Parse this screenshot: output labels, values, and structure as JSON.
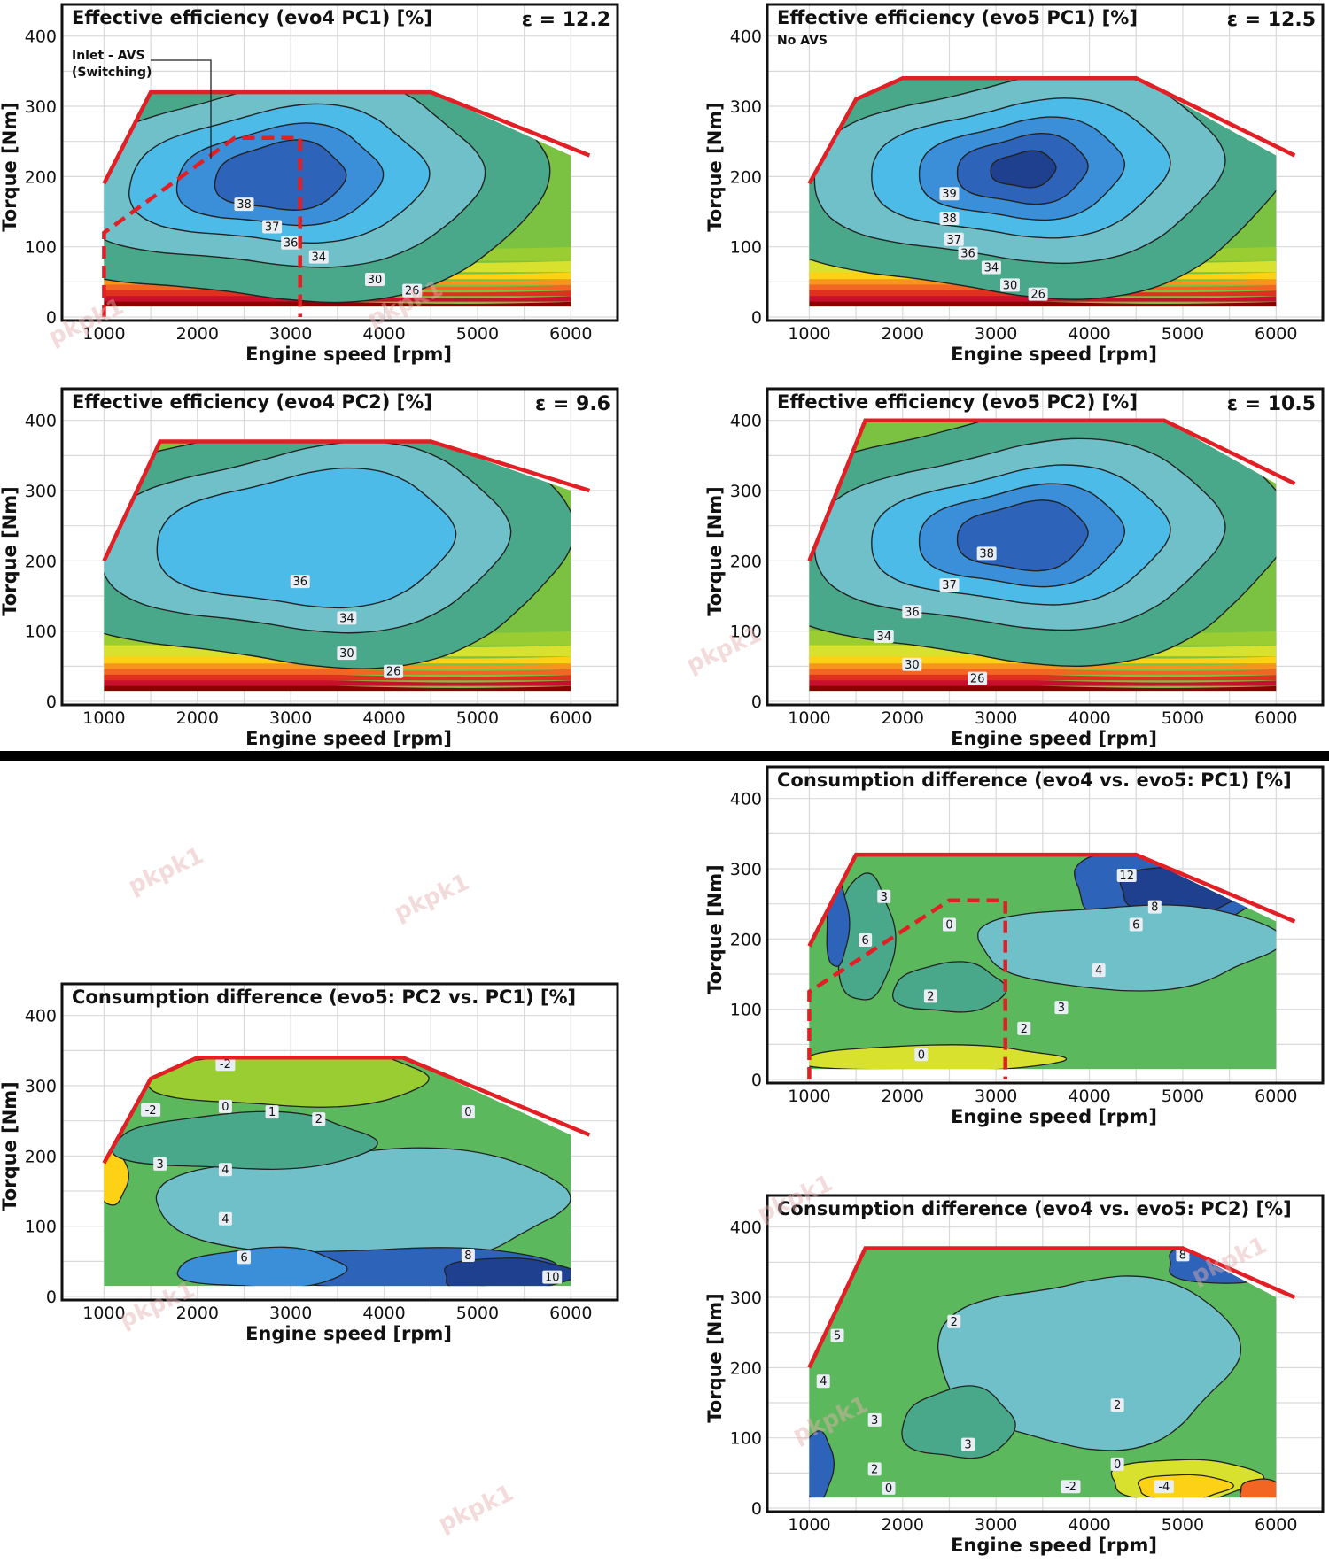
{
  "watermark": "pkpk1",
  "colors": {
    "full_load_line": "#e31e24",
    "frame": "#111111",
    "separator": "#000000",
    "efficiency_bands": [
      "#8b0000",
      "#c8102e",
      "#e0301e",
      "#f26522",
      "#f7941d",
      "#fcd116",
      "#d8e22e",
      "#9acd32",
      "#5cb85c",
      "#4aa88a",
      "#6fc0c8",
      "#4dbbe8",
      "#3a8fd8",
      "#2d63b8",
      "#1f3f8f"
    ]
  },
  "chart_data": [
    {
      "id": "evo4-pc1",
      "type": "contour",
      "title": "Effective efficiency (evo4 PC1) [%]",
      "compression_ratio": "ε = 12.2",
      "annotation": "Inlet - AVS\n(Switching)",
      "annotation_lines": [
        "Inlet - AVS",
        "(Switching)"
      ],
      "xlabel": "Engine speed [rpm]",
      "ylabel": "Torque [Nm]",
      "xlim": [
        550,
        6500
      ],
      "ylim": [
        -5,
        445
      ],
      "xticks": [
        1000,
        2000,
        3000,
        4000,
        5000,
        6000
      ],
      "yticks": [
        0,
        100,
        200,
        300,
        400
      ],
      "full_load_curve": [
        [
          1000,
          190
        ],
        [
          1500,
          320
        ],
        [
          4500,
          320
        ],
        [
          6200,
          230
        ]
      ],
      "switching_boundary": [
        [
          1000,
          0
        ],
        [
          1000,
          120
        ],
        [
          2400,
          255
        ],
        [
          3100,
          255
        ],
        [
          3100,
          0
        ]
      ],
      "contour_levels": [
        39,
        38,
        37,
        36,
        34,
        30,
        26
      ],
      "contour_labels": [
        "38",
        "37",
        "36",
        "34",
        "30",
        "26"
      ]
    },
    {
      "id": "evo5-pc1",
      "type": "contour",
      "title": "Effective efficiency (evo5 PC1) [%]",
      "compression_ratio": "ε = 12.5",
      "subtitle": "No AVS",
      "xlabel": "Engine speed [rpm]",
      "ylabel": "Torque [Nm]",
      "xlim": [
        550,
        6500
      ],
      "ylim": [
        -5,
        445
      ],
      "xticks": [
        1000,
        2000,
        3000,
        4000,
        5000,
        6000
      ],
      "yticks": [
        0,
        100,
        200,
        300,
        400
      ],
      "full_load_curve": [
        [
          1000,
          190
        ],
        [
          1500,
          310
        ],
        [
          2000,
          340
        ],
        [
          4500,
          340
        ],
        [
          6200,
          230
        ]
      ],
      "contour_levels": [
        39,
        38,
        37,
        36,
        34,
        30,
        26
      ],
      "contour_labels": [
        "39",
        "38",
        "37",
        "36",
        "34",
        "30",
        "26"
      ]
    },
    {
      "id": "evo4-pc2",
      "type": "contour",
      "title": "Effective efficiency (evo4 PC2) [%]",
      "compression_ratio": "ε = 9.6",
      "xlabel": "Engine speed [rpm]",
      "ylabel": "Torque [Nm]",
      "xlim": [
        550,
        6500
      ],
      "ylim": [
        -5,
        445
      ],
      "xticks": [
        1000,
        2000,
        3000,
        4000,
        5000,
        6000
      ],
      "yticks": [
        0,
        100,
        200,
        300,
        400
      ],
      "full_load_curve": [
        [
          1000,
          200
        ],
        [
          1600,
          370
        ],
        [
          4500,
          370
        ],
        [
          6200,
          300
        ]
      ],
      "contour_levels": [
        36,
        34,
        30,
        26
      ],
      "contour_labels": [
        "36",
        "34",
        "30",
        "26"
      ]
    },
    {
      "id": "evo5-pc2",
      "type": "contour",
      "title": "Effective efficiency (evo5 PC2) [%]",
      "compression_ratio": "ε = 10.5",
      "xlabel": "Engine speed [rpm]",
      "ylabel": "Torque [Nm]",
      "xlim": [
        550,
        6500
      ],
      "ylim": [
        -5,
        445
      ],
      "xticks": [
        1000,
        2000,
        3000,
        4000,
        5000,
        6000
      ],
      "yticks": [
        0,
        100,
        200,
        300,
        400
      ],
      "full_load_curve": [
        [
          1000,
          200
        ],
        [
          1600,
          400
        ],
        [
          4800,
          400
        ],
        [
          6200,
          310
        ]
      ],
      "contour_levels": [
        38,
        37,
        36,
        34,
        30,
        26
      ],
      "contour_labels": [
        "38",
        "37",
        "36",
        "34",
        "30",
        "26"
      ]
    },
    {
      "id": "diff-evo4-evo5-pc1",
      "type": "contour",
      "title": "Consumption difference (evo4 vs. evo5:  PC1) [%]",
      "xlabel": "Engine speed [rpm]",
      "ylabel": "Torque [Nm]",
      "xlim": [
        550,
        6500
      ],
      "ylim": [
        -5,
        445
      ],
      "xticks": [
        1000,
        2000,
        3000,
        4000,
        5000,
        6000
      ],
      "yticks": [
        0,
        100,
        200,
        300,
        400
      ],
      "full_load_curve": [
        [
          1000,
          190
        ],
        [
          1500,
          320
        ],
        [
          4500,
          320
        ],
        [
          6200,
          225
        ]
      ],
      "switching_boundary": [
        [
          1000,
          0
        ],
        [
          1000,
          125
        ],
        [
          2500,
          255
        ],
        [
          3100,
          255
        ],
        [
          3100,
          0
        ]
      ],
      "contour_labels": [
        "12",
        "8",
        "6",
        "4",
        "3",
        "3",
        "6",
        "0",
        "2",
        "2",
        "0"
      ]
    },
    {
      "id": "diff-evo5-pc2-pc1",
      "type": "contour",
      "title": "Consumption difference (evo5:  PC2 vs. PC1) [%]",
      "xlabel": "Engine speed [rpm]",
      "ylabel": "Torque [Nm]",
      "xlim": [
        550,
        6500
      ],
      "ylim": [
        -5,
        445
      ],
      "xticks": [
        1000,
        2000,
        3000,
        4000,
        5000,
        6000
      ],
      "yticks": [
        0,
        100,
        200,
        300,
        400
      ],
      "full_load_curve": [
        [
          1000,
          190
        ],
        [
          1500,
          310
        ],
        [
          2000,
          340
        ],
        [
          4200,
          340
        ],
        [
          6200,
          230
        ]
      ],
      "contour_labels": [
        "-2",
        "-2",
        "0",
        "1",
        "2",
        "0",
        "3",
        "4",
        "4",
        "6",
        "8",
        "10"
      ]
    },
    {
      "id": "diff-evo4-evo5-pc2",
      "type": "contour",
      "title": "Consumption difference (evo4 vs. evo5:  PC2) [%]",
      "xlabel": "Engine speed [rpm]",
      "ylabel": "Torque [Nm]",
      "xlim": [
        550,
        6500
      ],
      "ylim": [
        -5,
        445
      ],
      "xticks": [
        1000,
        2000,
        3000,
        4000,
        5000,
        6000
      ],
      "yticks": [
        0,
        100,
        200,
        300,
        400
      ],
      "full_load_curve": [
        [
          1000,
          200
        ],
        [
          1600,
          370
        ],
        [
          5000,
          370
        ],
        [
          6200,
          300
        ]
      ],
      "contour_labels": [
        "8",
        "2",
        "5",
        "4",
        "3",
        "3",
        "2",
        "2",
        "0",
        "-2",
        "-4",
        "0"
      ]
    }
  ]
}
